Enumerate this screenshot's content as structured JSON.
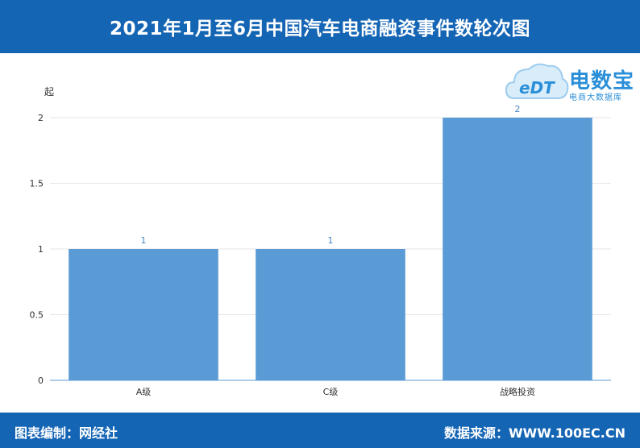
{
  "header": {
    "title": "2021年1月至6月中国汽车电商融资事件数轮次图"
  },
  "logo": {
    "mark": "eDT",
    "brand": "电数宝",
    "tagline": "电商大数据库"
  },
  "footer": {
    "editor": "图表编制：网经社",
    "source": "数据来源：WWW.100EC.CN"
  },
  "colors": {
    "header_bg": "#1565b5",
    "bar": "#5b9bd5",
    "label": "#4a86c8",
    "brand": "#2a8fd8"
  },
  "chart_data": {
    "type": "bar",
    "unit_label": "起",
    "categories": [
      "A级",
      "C级",
      "战略投资"
    ],
    "values": [
      1,
      1,
      2
    ],
    "data_labels": [
      "1",
      "1",
      "2"
    ],
    "ylim": [
      0,
      2
    ],
    "yticks": [
      "0",
      "0.5",
      "1",
      "1.5",
      "2"
    ],
    "grid": true,
    "legend": "none"
  }
}
